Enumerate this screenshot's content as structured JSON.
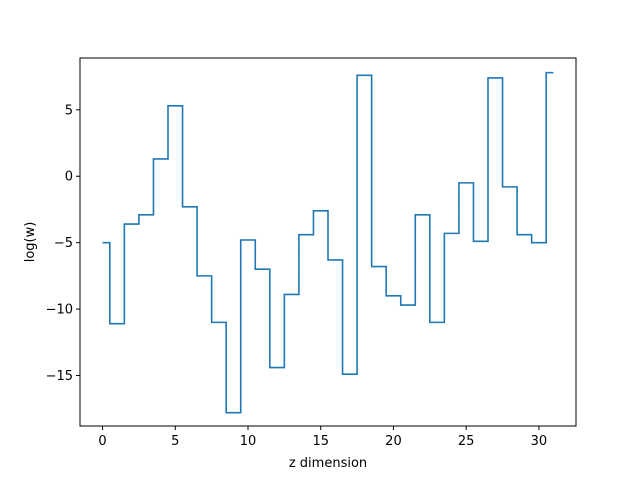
{
  "chart_data": {
    "type": "line",
    "drawstyle": "steps-mid",
    "title": "",
    "xlabel": "z dimension",
    "ylabel": "log(w)",
    "xlim": [
      -1.55,
      32.55
    ],
    "ylim": [
      -18.8,
      8.9
    ],
    "xticks": [
      0,
      5,
      10,
      15,
      20,
      25,
      30
    ],
    "yticks": [
      -15,
      -10,
      -5,
      0,
      5
    ],
    "grid": false,
    "legend": "none",
    "line_color": "#1f77b4",
    "series": [
      {
        "x": [
          0,
          1,
          2,
          3,
          4,
          5,
          6,
          7,
          8,
          9,
          10,
          11,
          12,
          13,
          14,
          15,
          16,
          17,
          18,
          19,
          20,
          21,
          22,
          23,
          24,
          25,
          26,
          27,
          28,
          29,
          30,
          31
        ],
        "y": [
          -5.0,
          -11.1,
          -3.6,
          -2.9,
          1.3,
          5.3,
          -2.3,
          -7.5,
          -11.0,
          -17.8,
          -4.8,
          -7.0,
          -14.4,
          -8.9,
          -4.4,
          -2.6,
          -6.3,
          -14.9,
          7.6,
          -6.8,
          -9.0,
          -9.7,
          -2.9,
          -11.0,
          -4.3,
          -0.5,
          -4.9,
          7.4,
          -0.8,
          -4.4,
          -5.0,
          7.8
        ]
      }
    ]
  }
}
